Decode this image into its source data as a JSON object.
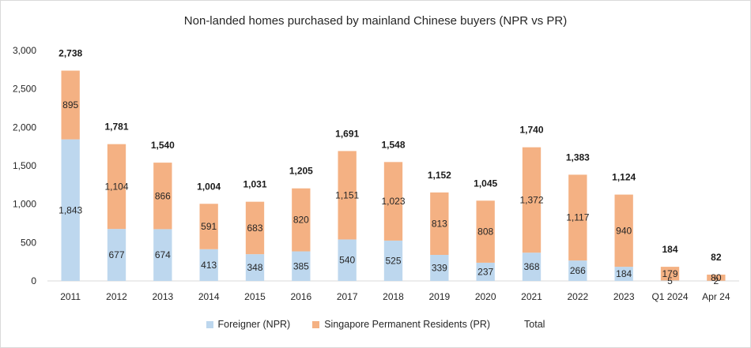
{
  "chart_data": {
    "type": "bar",
    "stacked": true,
    "title": "Non-landed homes purchased by mainland Chinese buyers (NPR vs PR)",
    "xlabel": "",
    "ylabel": "",
    "ylim": [
      0,
      3000
    ],
    "yticks": [
      0,
      500,
      1000,
      1500,
      2000,
      2500,
      3000
    ],
    "ytick_labels": [
      "0",
      "500",
      "1,000",
      "1,500",
      "2,000",
      "2,500",
      "3,000"
    ],
    "grid": false,
    "legend": "bottom",
    "categories": [
      "2011",
      "2012",
      "2013",
      "2014",
      "2015",
      "2016",
      "2017",
      "2018",
      "2019",
      "2020",
      "2021",
      "2022",
      "2023",
      "Q1 2024",
      "Apr 24"
    ],
    "series": [
      {
        "name": "Foreigner (NPR)",
        "color": "#bdd7ee",
        "values": [
          1843,
          677,
          674,
          413,
          348,
          385,
          540,
          525,
          339,
          237,
          368,
          266,
          184,
          5,
          2
        ],
        "labels": [
          "1,843",
          "677",
          "674",
          "413",
          "348",
          "385",
          "540",
          "525",
          "339",
          "237",
          "368",
          "266",
          "184",
          "5",
          "2"
        ]
      },
      {
        "name": "Singapore Permanent Residents (PR)",
        "color": "#f4b183",
        "values": [
          895,
          1104,
          866,
          591,
          683,
          820,
          1151,
          1023,
          813,
          808,
          1372,
          1117,
          940,
          179,
          80
        ],
        "labels": [
          "895",
          "1,104",
          "866",
          "591",
          "683",
          "820",
          "1,151",
          "1,023",
          "813",
          "808",
          "1,372",
          "1,117",
          "940",
          "179",
          "80"
        ]
      },
      {
        "name": "Total",
        "color": "",
        "values": [
          2738,
          1781,
          1540,
          1004,
          1031,
          1205,
          1691,
          1548,
          1152,
          1045,
          1740,
          1383,
          1124,
          184,
          82
        ],
        "labels": [
          "2,738",
          "1,781",
          "1,540",
          "1,004",
          "1,031",
          "1,205",
          "1,691",
          "1,548",
          "1,152",
          "1,045",
          "1,740",
          "1,383",
          "1,124",
          "184",
          "82"
        ]
      }
    ]
  }
}
